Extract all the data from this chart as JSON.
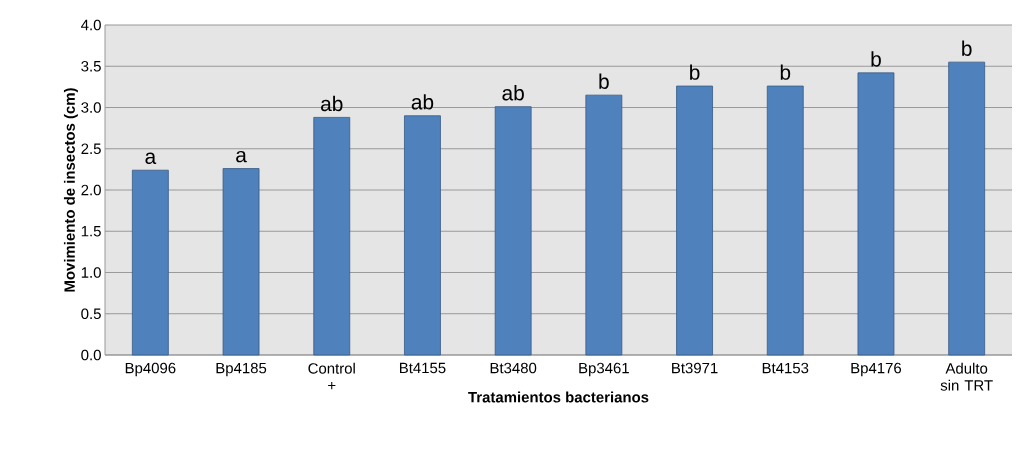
{
  "chart_data": {
    "type": "bar",
    "xlabel": "Tratamientos bacterianos",
    "ylabel": "Movimiento de insectos (cm)",
    "categories": [
      "Bp4096",
      "Bp4185",
      "Control +",
      "Bt4155",
      "Bt3480",
      "Bp3461",
      "Bt3971",
      "Bt4153",
      "Bp4176",
      "Adulto sin TRT"
    ],
    "values": [
      2.24,
      2.26,
      2.88,
      2.9,
      3.01,
      3.15,
      3.26,
      3.26,
      3.42,
      3.55
    ],
    "color": "#4f81bd",
    "ylim": [
      0,
      4
    ],
    "yticks": [
      {
        "value": 0,
        "label": "0.0"
      },
      {
        "value": 0.5,
        "label": "0.5"
      },
      {
        "value": 1,
        "label": "1.0"
      },
      {
        "value": 1.5,
        "label": "1.5"
      },
      {
        "value": 2,
        "label": "2.0"
      },
      {
        "value": 2.5,
        "label": "2.5"
      },
      {
        "value": 3,
        "label": "3.0"
      },
      {
        "value": 3.5,
        "label": "3.5"
      },
      {
        "value": 4,
        "label": "4.0"
      }
    ],
    "grid": "y",
    "annotations": [
      {
        "text": "a",
        "x": "Bp4096",
        "y": 2.24
      },
      {
        "text": "a",
        "x": "Bp4185",
        "y": 2.26
      },
      {
        "text": "ab",
        "x": "Control +",
        "y": 2.88
      },
      {
        "text": "ab",
        "x": "Bt4155",
        "y": 2.9
      },
      {
        "text": "ab",
        "x": "Bt3480",
        "y": 3.01
      },
      {
        "text": "b",
        "x": "Bp3461",
        "y": 3.15
      },
      {
        "text": "b",
        "x": "Bt3971",
        "y": 3.26
      },
      {
        "text": "b",
        "x": "Bt4153",
        "y": 3.26
      },
      {
        "text": "b",
        "x": "Bp4176",
        "y": 3.42
      },
      {
        "text": "b",
        "x": "Adulto sin TRT",
        "y": 3.55
      }
    ]
  }
}
